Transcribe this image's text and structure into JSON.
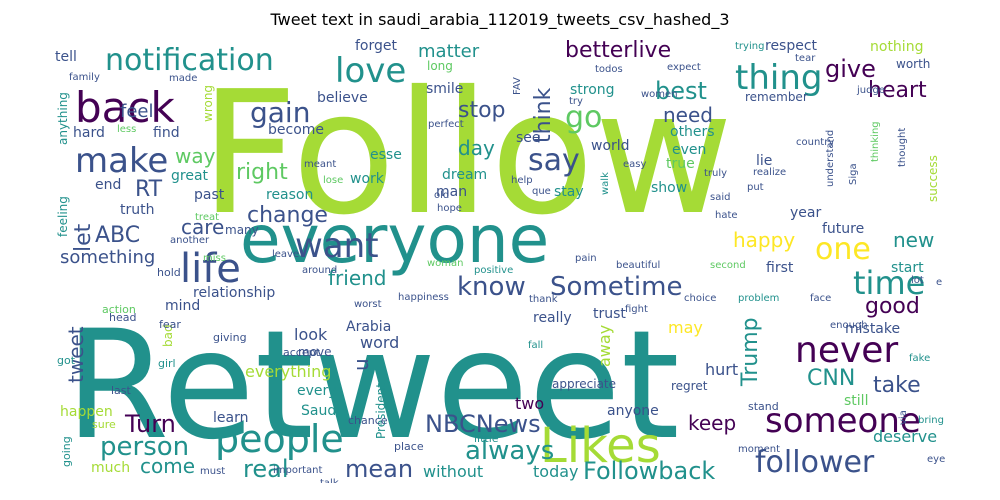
{
  "title": "Tweet text in saudi_arabia_112019_tweets_csv_hashed_3",
  "palette": {
    "purple": "#440154",
    "indigo": "#3b528b",
    "teal": "#21918c",
    "green": "#5ec962",
    "lime": "#a5db36",
    "yellow": "#fde725"
  },
  "words": [
    {
      "text": "Follow",
      "color": "#a5db36"
    },
    {
      "text": "Retweet",
      "color": "#21918c"
    },
    {
      "text": "everyone",
      "color": "#21918c"
    },
    {
      "text": "Likes",
      "color": "#a5db36"
    },
    {
      "text": "people",
      "color": "#21918c"
    },
    {
      "text": "back",
      "color": "#440154"
    },
    {
      "text": "notification",
      "color": "#21918c"
    },
    {
      "text": "life",
      "color": "#3b528b"
    },
    {
      "text": "want",
      "color": "#3b528b"
    },
    {
      "text": "love",
      "color": "#21918c"
    },
    {
      "text": "make",
      "color": "#3b528b"
    },
    {
      "text": "thing",
      "color": "#21918c"
    },
    {
      "text": "never",
      "color": "#440154"
    },
    {
      "text": "someone",
      "color": "#440154"
    },
    {
      "text": "follower",
      "color": "#3b528b"
    },
    {
      "text": "Followback",
      "color": "#21918c"
    },
    {
      "text": "Turn",
      "color": "#440154"
    },
    {
      "text": "person",
      "color": "#21918c"
    },
    {
      "text": "one",
      "color": "#fde725"
    },
    {
      "text": "time",
      "color": "#21918c"
    },
    {
      "text": "say",
      "color": "#3b528b"
    },
    {
      "text": "go",
      "color": "#5ec962"
    },
    {
      "text": "gain",
      "color": "#3b528b"
    },
    {
      "text": "know",
      "color": "#3b528b"
    },
    {
      "text": "Sometime",
      "color": "#3b528b"
    },
    {
      "text": "always",
      "color": "#21918c"
    },
    {
      "text": "real",
      "color": "#21918c"
    },
    {
      "text": "mean",
      "color": "#3b528b"
    },
    {
      "text": "NBCNews",
      "color": "#3b528b"
    },
    {
      "text": "CNN",
      "color": "#21918c"
    },
    {
      "text": "take",
      "color": "#3b528b"
    },
    {
      "text": "good",
      "color": "#440154"
    },
    {
      "text": "give",
      "color": "#440154"
    },
    {
      "text": "heart",
      "color": "#440154"
    },
    {
      "text": "best",
      "color": "#21918c"
    },
    {
      "text": "betterlive",
      "color": "#440154"
    },
    {
      "text": "think",
      "color": "#3b528b"
    },
    {
      "text": "stop",
      "color": "#3b528b"
    },
    {
      "text": "matter",
      "color": "#21918c"
    },
    {
      "text": "right",
      "color": "#5ec962"
    },
    {
      "text": "change",
      "color": "#3b528b"
    },
    {
      "text": "ABC",
      "color": "#3b528b"
    },
    {
      "text": "RT",
      "color": "#3b528b"
    },
    {
      "text": "let",
      "color": "#3b528b"
    },
    {
      "text": "friend",
      "color": "#21918c"
    },
    {
      "text": "happy",
      "color": "#fde725"
    },
    {
      "text": "need",
      "color": "#3b528b"
    },
    {
      "text": "new",
      "color": "#21918c"
    },
    {
      "text": "keep",
      "color": "#440154"
    },
    {
      "text": "come",
      "color": "#21918c"
    },
    {
      "text": "tweet",
      "color": "#3b528b"
    },
    {
      "text": "Trump",
      "color": "#21918c"
    },
    {
      "text": "day",
      "color": "#21918c"
    },
    {
      "text": "way",
      "color": "#5ec962"
    },
    {
      "text": "care",
      "color": "#3b528b"
    },
    {
      "text": "feel",
      "color": "#3b528b"
    },
    {
      "text": "something",
      "color": "#3b528b"
    },
    {
      "text": "everything",
      "color": "#a5db36"
    },
    {
      "text": "u",
      "color": "#3b528b"
    },
    {
      "text": "two",
      "color": "#440154"
    },
    {
      "text": "today",
      "color": "#21918c"
    },
    {
      "text": "without",
      "color": "#21918c"
    },
    {
      "text": "deserve",
      "color": "#21918c"
    },
    {
      "text": "may",
      "color": "#fde725"
    },
    {
      "text": "hurt",
      "color": "#3b528b"
    },
    {
      "text": "away",
      "color": "#a5db36"
    },
    {
      "text": "Saudi",
      "color": "#21918c"
    },
    {
      "text": "every",
      "color": "#21918c"
    },
    {
      "text": "look",
      "color": "#3b528b"
    },
    {
      "text": "word",
      "color": "#3b528b"
    },
    {
      "text": "Arabia",
      "color": "#3b528b"
    },
    {
      "text": "mind",
      "color": "#3b528b"
    },
    {
      "text": "relationship",
      "color": "#3b528b"
    },
    {
      "text": "truth",
      "color": "#3b528b"
    },
    {
      "text": "great",
      "color": "#21918c"
    },
    {
      "text": "end",
      "color": "#3b528b"
    },
    {
      "text": "find",
      "color": "#3b528b"
    },
    {
      "text": "hard",
      "color": "#3b528b"
    },
    {
      "text": "tell",
      "color": "#3b528b"
    },
    {
      "text": "anything",
      "color": "#21918c"
    },
    {
      "text": "feeling",
      "color": "#21918c"
    },
    {
      "text": "past",
      "color": "#3b528b"
    },
    {
      "text": "reason",
      "color": "#21918c"
    },
    {
      "text": "become",
      "color": "#3b528b"
    },
    {
      "text": "believe",
      "color": "#3b528b"
    },
    {
      "text": "smile",
      "color": "#3b528b"
    },
    {
      "text": "long",
      "color": "#5ec962"
    },
    {
      "text": "forget",
      "color": "#3b528b"
    },
    {
      "text": "wrong",
      "color": "#a5db36"
    },
    {
      "text": "work",
      "color": "#21918c"
    },
    {
      "text": "dream",
      "color": "#21918c"
    },
    {
      "text": "man",
      "color": "#3b528b"
    },
    {
      "text": "esse",
      "color": "#21918c"
    },
    {
      "text": "see",
      "color": "#3b528b"
    },
    {
      "text": "world",
      "color": "#3b528b"
    },
    {
      "text": "strong",
      "color": "#21918c"
    },
    {
      "text": "stay",
      "color": "#21918c"
    },
    {
      "text": "true",
      "color": "#5ec962"
    },
    {
      "text": "show",
      "color": "#21918c"
    },
    {
      "text": "even",
      "color": "#21918c"
    },
    {
      "text": "others",
      "color": "#21918c"
    },
    {
      "text": "lie",
      "color": "#3b528b"
    },
    {
      "text": "year",
      "color": "#3b528b"
    },
    {
      "text": "future",
      "color": "#3b528b"
    },
    {
      "text": "first",
      "color": "#3b528b"
    },
    {
      "text": "start",
      "color": "#21918c"
    },
    {
      "text": "mistake",
      "color": "#3b528b"
    },
    {
      "text": "trust",
      "color": "#3b528b"
    },
    {
      "text": "really",
      "color": "#3b528b"
    },
    {
      "text": "anyone",
      "color": "#3b528b"
    },
    {
      "text": "still",
      "color": "#5ec962"
    },
    {
      "text": "success",
      "color": "#a5db36"
    },
    {
      "text": "remember",
      "color": "#3b528b"
    },
    {
      "text": "respect",
      "color": "#3b528b"
    },
    {
      "text": "nothing",
      "color": "#a5db36"
    },
    {
      "text": "worth",
      "color": "#3b528b"
    },
    {
      "text": "trying",
      "color": "#21918c"
    },
    {
      "text": "learn",
      "color": "#3b528b"
    },
    {
      "text": "happen",
      "color": "#a5db36"
    },
    {
      "text": "much",
      "color": "#a5db36"
    },
    {
      "text": "many",
      "color": "#3b528b"
    },
    {
      "text": "President",
      "color": "#21918c"
    },
    {
      "text": "bad",
      "color": "#a5db36"
    },
    {
      "text": "move",
      "color": "#3b528b"
    },
    {
      "text": "accept",
      "color": "#3b528b"
    },
    {
      "text": "appreciate",
      "color": "#3b528b"
    },
    {
      "text": "regret",
      "color": "#3b528b"
    },
    {
      "text": "little",
      "color": "#21918c"
    },
    {
      "text": "place",
      "color": "#3b528b"
    },
    {
      "text": "chance",
      "color": "#3b528b"
    },
    {
      "text": "stand",
      "color": "#3b528b"
    },
    {
      "text": "going",
      "color": "#21918c"
    },
    {
      "text": "sure",
      "color": "#a5db36"
    },
    {
      "text": "last",
      "color": "#3b528b"
    },
    {
      "text": "got",
      "color": "#21918c"
    },
    {
      "text": "girl",
      "color": "#21918c"
    },
    {
      "text": "head",
      "color": "#3b528b"
    },
    {
      "text": "action",
      "color": "#5ec962"
    },
    {
      "text": "fear",
      "color": "#3b528b"
    },
    {
      "text": "hold",
      "color": "#3b528b"
    },
    {
      "text": "giving",
      "color": "#3b528b"
    },
    {
      "text": "another",
      "color": "#3b528b"
    },
    {
      "text": "miss",
      "color": "#5ec962"
    },
    {
      "text": "leave",
      "color": "#3b528b"
    },
    {
      "text": "around",
      "color": "#3b528b"
    },
    {
      "text": "woman",
      "color": "#5ec962"
    },
    {
      "text": "positive",
      "color": "#21918c"
    },
    {
      "text": "worst",
      "color": "#3b528b"
    },
    {
      "text": "happiness",
      "color": "#3b528b"
    },
    {
      "text": "thank",
      "color": "#3b528b"
    },
    {
      "text": "pain",
      "color": "#3b528b"
    },
    {
      "text": "fall",
      "color": "#21918c"
    },
    {
      "text": "beautiful",
      "color": "#3b528b"
    },
    {
      "text": "fight",
      "color": "#3b528b"
    },
    {
      "text": "second",
      "color": "#5ec962"
    },
    {
      "text": "choice",
      "color": "#3b528b"
    },
    {
      "text": "problem",
      "color": "#21918c"
    },
    {
      "text": "lot",
      "color": "#3b528b"
    },
    {
      "text": "face",
      "color": "#3b528b"
    },
    {
      "text": "enough",
      "color": "#3b528b"
    },
    {
      "text": "fake",
      "color": "#21918c"
    },
    {
      "text": "eye",
      "color": "#3b528b"
    },
    {
      "text": "bring",
      "color": "#21918c"
    },
    {
      "text": "via",
      "color": "#3b528b"
    },
    {
      "text": "moment",
      "color": "#3b528b"
    },
    {
      "text": "must",
      "color": "#3b528b"
    },
    {
      "text": "talk",
      "color": "#3b528b"
    },
    {
      "text": "important",
      "color": "#3b528b"
    },
    {
      "text": "family",
      "color": "#3b528b"
    },
    {
      "text": "made",
      "color": "#3b528b"
    },
    {
      "text": "less",
      "color": "#5ec962"
    },
    {
      "text": "perfect",
      "color": "#3b528b"
    },
    {
      "text": "FAV",
      "color": "#3b528b"
    },
    {
      "text": "todos",
      "color": "#3b528b"
    },
    {
      "text": "try",
      "color": "#3b528b"
    },
    {
      "text": "women",
      "color": "#3b528b"
    },
    {
      "text": "expect",
      "color": "#3b528b"
    },
    {
      "text": "tear",
      "color": "#3b528b"
    },
    {
      "text": "judge",
      "color": "#3b528b"
    },
    {
      "text": "country",
      "color": "#3b528b"
    },
    {
      "text": "thinking",
      "color": "#5ec962"
    },
    {
      "text": "thought",
      "color": "#3b528b"
    },
    {
      "text": "Siga",
      "color": "#3b528b"
    },
    {
      "text": "understand",
      "color": "#3b528b"
    },
    {
      "text": "realize",
      "color": "#3b528b"
    },
    {
      "text": "put",
      "color": "#3b528b"
    },
    {
      "text": "truly",
      "color": "#3b528b"
    },
    {
      "text": "said",
      "color": "#3b528b"
    },
    {
      "text": "hate",
      "color": "#3b528b"
    },
    {
      "text": "easy",
      "color": "#3b528b"
    },
    {
      "text": "walk",
      "color": "#21918c"
    },
    {
      "text": "help",
      "color": "#3b528b"
    },
    {
      "text": "que",
      "color": "#3b528b"
    },
    {
      "text": "old",
      "color": "#3b528b"
    },
    {
      "text": "hope",
      "color": "#3b528b"
    },
    {
      "text": "meant",
      "color": "#3b528b"
    },
    {
      "text": "lose",
      "color": "#5ec962"
    },
    {
      "text": "treat",
      "color": "#5ec962"
    },
    {
      "text": "e",
      "color": "#3b528b"
    }
  ]
}
